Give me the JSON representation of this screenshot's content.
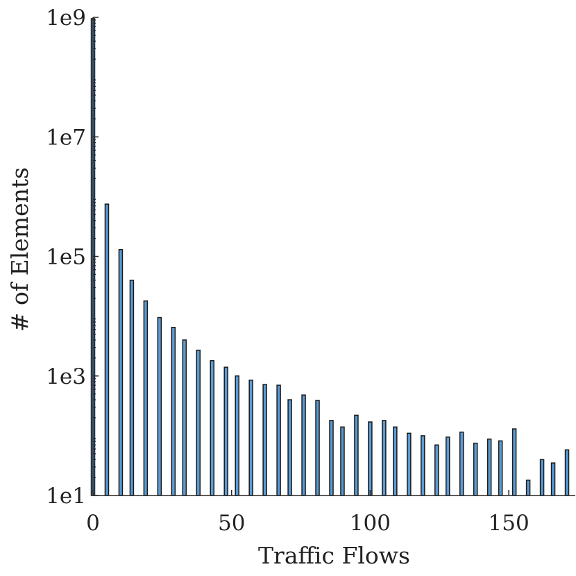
{
  "chart_data": {
    "type": "bar",
    "title": "",
    "xlabel": "Traffic Flows",
    "ylabel": "# of Elements",
    "y_scale": "log",
    "xlim": [
      0,
      174
    ],
    "ylim": [
      10,
      1000000000
    ],
    "xticks": [
      0,
      50,
      100,
      150
    ],
    "xtick_labels": [
      "0",
      "50",
      "100",
      "150"
    ],
    "yticks": [
      10,
      1000,
      100000,
      10000000,
      1000000000
    ],
    "ytick_labels": [
      "1e1",
      "1e3",
      "1e5",
      "1e7",
      "1e9"
    ],
    "grid": false,
    "bar_color": "#5b9bd5",
    "bar_edge_color": "#1a1a1a",
    "x": [
      0,
      5,
      10,
      14,
      19,
      24,
      29,
      33,
      38,
      43,
      48,
      52,
      57,
      62,
      67,
      71,
      76,
      81,
      86,
      90,
      95,
      100,
      105,
      109,
      114,
      119,
      124,
      128,
      133,
      138,
      143,
      147,
      152,
      157,
      162,
      166,
      171
    ],
    "values": [
      950000000,
      750000,
      130000,
      40000,
      18000,
      9500,
      6500,
      4000,
      2700,
      1800,
      1400,
      1000,
      850,
      720,
      700,
      400,
      480,
      390,
      180,
      140,
      220,
      170,
      180,
      140,
      110,
      100,
      70,
      95,
      115,
      75,
      88,
      82,
      130,
      18,
      40,
      35,
      58
    ]
  }
}
